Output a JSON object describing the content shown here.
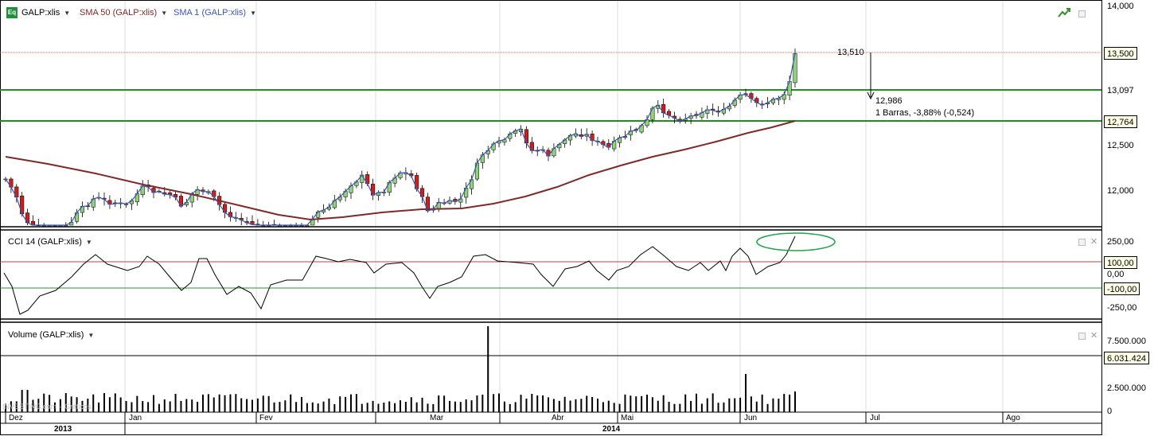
{
  "header": {
    "symbol_label": "GALP:xlis",
    "sma50_label": "SMA 50 (GALP:xlis)",
    "sma1_label": "SMA 1 (GALP:xlis)",
    "icon_badge": "Eq"
  },
  "cci_panel": {
    "label": "CCI 14 (GALP:xlis)"
  },
  "volume_panel": {
    "label": "Volume (GALP:xlis)"
  },
  "watermark": "INVESTING.com – Gráficos",
  "price_axis": [
    "14,000",
    "13,500",
    "13,097",
    "12,764",
    "12,500",
    "12,000"
  ],
  "price_tags": {
    "last": "13,500",
    "upper": "13,097",
    "lower": "12,764"
  },
  "cci_axis": [
    "250,00",
    "100,00",
    "0,00",
    "-100,00",
    "-250,00"
  ],
  "cci_tags": {
    "level": "100,00",
    "minus": "-100,00"
  },
  "volume_axis": [
    "7.500.000",
    "6.031.424",
    "2.500.000",
    "0"
  ],
  "volume_tag": "6.031.424",
  "measure": {
    "start": "13,510",
    "end": "12,986",
    "stats": "1 Barras, -3,88% (-0,524)"
  },
  "months": [
    "Dez",
    "Jan",
    "Fev",
    "Mar",
    "Abr",
    "Mai",
    "Jun",
    "Jul",
    "Ago"
  ],
  "years": [
    "2013",
    "2014"
  ],
  "colors": {
    "up": "#90d27a",
    "down": "#cc1f1f",
    "sma50": "#7e2a2a",
    "sma1": "#3a55b4",
    "support": "#1f8f1f",
    "cci_upper": "#c04040",
    "cci_lower": "#2f8f2f",
    "ellipse": "#22a34a"
  },
  "chart_data": {
    "type": "candlestick",
    "candle_count": 145,
    "price_levels": {
      "resistance_1": 13.097,
      "resistance_2": 12.764,
      "last_close": 13.5
    },
    "price_ylim": [
      11.6,
      14.0
    ],
    "cci_levels": [
      100,
      -100
    ],
    "cci_ylim": [
      -300,
      300
    ],
    "volume_ylim": [
      0,
      10000000
    ],
    "volume_last": 6031424
  }
}
